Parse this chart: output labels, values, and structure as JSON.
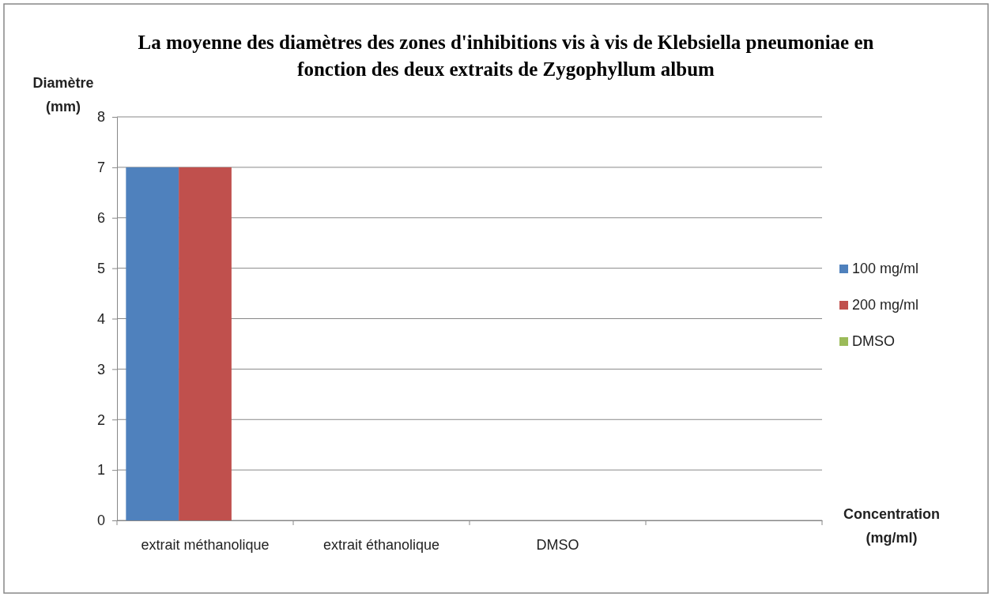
{
  "chart_data": {
    "type": "bar",
    "title": "La moyenne des diamètres des zones d'inhibitions vis à vis de Klebsiella pneumoniae en fonction des deux extraits de Zygophyllum album",
    "xlabel": "Concentration (mg/ml)",
    "ylabel": "Diamètre (mm)",
    "categories": [
      "extrait méthanolique",
      "extrait éthanolique",
      "DMSO",
      null
    ],
    "series": [
      {
        "name": "100 mg/ml",
        "color": "#4f81bd",
        "values": [
          7,
          null,
          null,
          null
        ]
      },
      {
        "name": "200 mg/ml",
        "color": "#c0504d",
        "values": [
          7,
          null,
          null,
          null
        ]
      },
      {
        "name": "DMSO",
        "color": "#9bbb59",
        "values": [
          null,
          null,
          null,
          null
        ]
      }
    ],
    "ylim": [
      0,
      8
    ],
    "yticks": [
      0,
      1,
      2,
      3,
      4,
      5,
      6,
      7,
      8
    ],
    "grid": "y",
    "legend": "right"
  }
}
